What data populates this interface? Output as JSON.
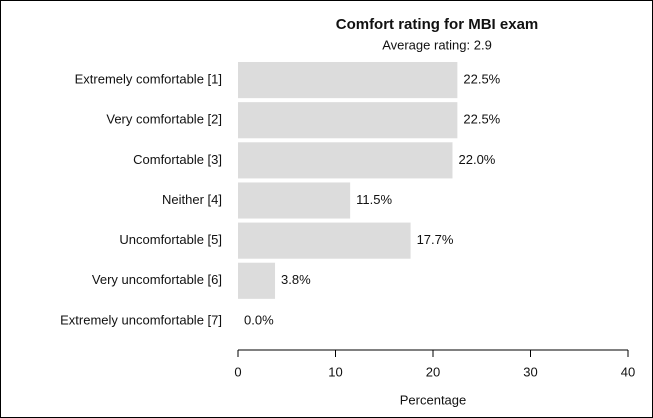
{
  "chart_data": {
    "type": "barh",
    "title": "Comfort rating for MBI exam",
    "subtitle": "Average rating: 2.9",
    "categories": [
      "Extremely comfortable [1]",
      "Very comfortable [2]",
      "Comfortable [3]",
      "Neither [4]",
      "Uncomfortable [5]",
      "Very uncomfortable [6]",
      "Extremely uncomfortable [7]"
    ],
    "values": [
      22.5,
      22.5,
      22.0,
      11.5,
      17.7,
      3.8,
      0.0
    ],
    "value_labels": [
      "22.5%",
      "22.5%",
      "22.0%",
      "11.5%",
      "17.7%",
      "3.8%",
      "0.0%"
    ],
    "color": "#dcdcdc",
    "xlabel": "Percentage",
    "xlim": [
      0,
      40
    ],
    "xticks": [
      0,
      10,
      20,
      30,
      40
    ],
    "grid": false
  }
}
